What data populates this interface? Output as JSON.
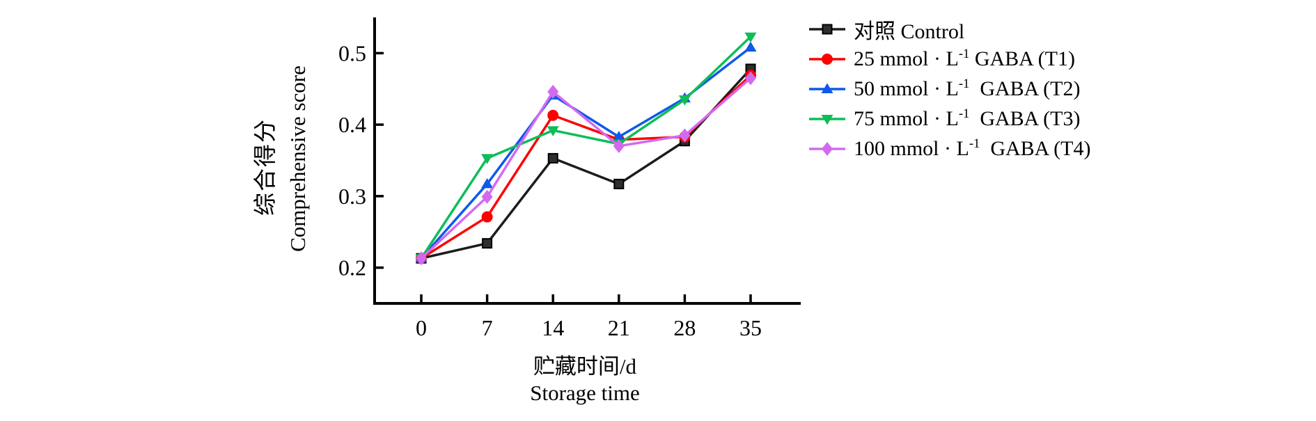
{
  "figure": {
    "background": "#ffffff",
    "y_axis": {
      "title_zh": "综合得分",
      "title_en": "Comprehensive score",
      "tick_labels": [
        "0.2",
        "0.3",
        "0.4",
        "0.5"
      ],
      "tick_values": [
        0.2,
        0.3,
        0.4,
        0.5
      ]
    },
    "x_axis": {
      "title_zh": "贮藏时间/d",
      "title_en": "Storage time",
      "tick_labels": [
        "0",
        "7",
        "14",
        "21",
        "28",
        "35"
      ],
      "tick_values": [
        0,
        7,
        14,
        21,
        28,
        35
      ]
    }
  },
  "chart_data": {
    "type": "line",
    "title": "",
    "xlabel": "贮藏时间/d Storage time",
    "ylabel": "综合得分 Comprehensive score",
    "x": [
      0,
      7,
      14,
      21,
      28,
      35
    ],
    "xlim": [
      -5,
      40
    ],
    "ylim": [
      0.15,
      0.55
    ],
    "grid": false,
    "legend_position": "right-top",
    "series": [
      {
        "name": "对照 Control",
        "label_parts": {
          "base": "对照 Control",
          "sup": "",
          "rest": ""
        },
        "color": "#1c1c1c",
        "marker": "square",
        "values": [
          0.213,
          0.234,
          0.353,
          0.317,
          0.377,
          0.478
        ]
      },
      {
        "name": "25 mmol·L⁻¹ GABA (T1)",
        "label_parts": {
          "base": "25 mmol · L",
          "sup": "-1",
          "rest": " GABA (T1)"
        },
        "color": "#fe0000",
        "marker": "circle",
        "values": [
          0.213,
          0.271,
          0.413,
          0.379,
          0.383,
          0.469
        ]
      },
      {
        "name": "50 mmol·L⁻¹ GABA (T2)",
        "label_parts": {
          "base": "50 mmol · L",
          "sup": "-1",
          "rest": "  GABA (T2)"
        },
        "color": "#0e59e8",
        "marker": "triangle-up",
        "values": [
          0.213,
          0.317,
          0.441,
          0.383,
          0.437,
          0.508
        ]
      },
      {
        "name": "75 mmol·L⁻¹ GABA (T3)",
        "label_parts": {
          "base": "75 mmol · L",
          "sup": "-1",
          "rest": "  GABA (T3)"
        },
        "color": "#0dbd58",
        "marker": "triangle-down",
        "values": [
          0.213,
          0.353,
          0.392,
          0.373,
          0.435,
          0.523
        ]
      },
      {
        "name": "100 mmol·L⁻¹ GABA (T4)",
        "label_parts": {
          "base": "100 mmol · L",
          "sup": "-1",
          "rest": "  GABA (T4)"
        },
        "color": "#d26af0",
        "marker": "diamond",
        "values": [
          0.213,
          0.299,
          0.446,
          0.37,
          0.385,
          0.465
        ]
      }
    ]
  }
}
